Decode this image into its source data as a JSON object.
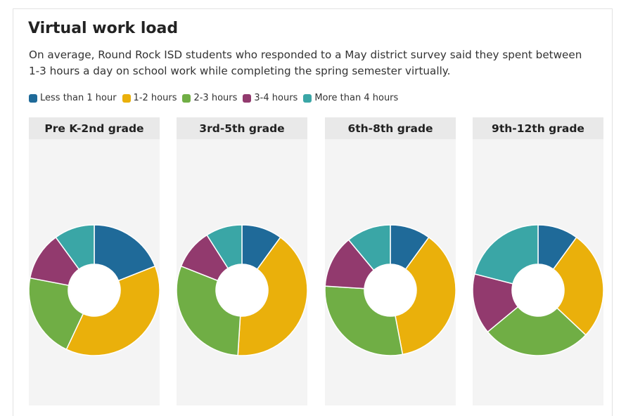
{
  "header": {
    "title": "Virtual work load",
    "subtitle": "On average, Round Rock ISD students who responded to a May district survey said they spent between 1-3 hours a day on school work while completing the spring semester virtually."
  },
  "legend": [
    {
      "label": "Less than 1 hour",
      "color": "#1f6a99"
    },
    {
      "label": "1-2 hours",
      "color": "#eab00b"
    },
    {
      "label": "2-3 hours",
      "color": "#70ae45"
    },
    {
      "label": "3-4 hours",
      "color": "#923a6e"
    },
    {
      "label": "More than 4 hours",
      "color": "#3aa6a6"
    }
  ],
  "chart_data": {
    "type": "pie",
    "style": "donut",
    "title": "Virtual work load",
    "categories": [
      "Less than 1 hour",
      "1-2 hours",
      "2-3 hours",
      "3-4 hours",
      "More than 4 hours"
    ],
    "series": [
      {
        "name": "Pre K-2nd grade",
        "values": [
          19,
          38,
          21,
          12,
          10
        ]
      },
      {
        "name": "3rd-5th grade",
        "values": [
          10,
          41,
          30,
          10,
          9
        ]
      },
      {
        "name": "6th-8th grade",
        "values": [
          10,
          37,
          29,
          13,
          11
        ]
      },
      {
        "name": "9th-12th grade",
        "values": [
          10,
          27,
          27,
          15,
          21
        ]
      }
    ]
  }
}
